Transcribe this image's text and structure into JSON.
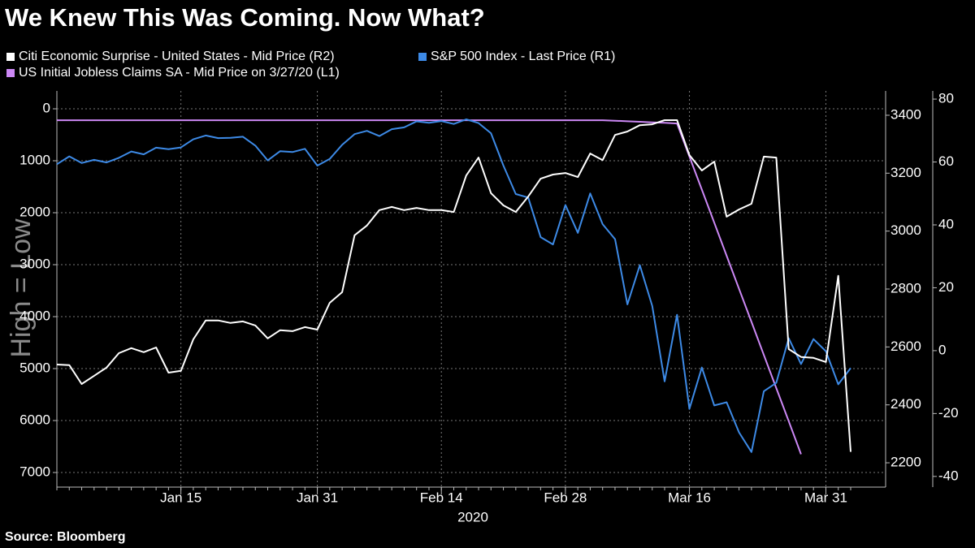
{
  "chart_data": {
    "type": "line",
    "title": "We Knew This Was Coming. Now What?",
    "source": "Source: Bloomberg",
    "xlabel": "2020",
    "ylabel": "High = Low",
    "categories": [
      null,
      null,
      null,
      null,
      null,
      null,
      null,
      null,
      null,
      null,
      "Jan 15",
      null,
      null,
      null,
      null,
      null,
      null,
      null,
      null,
      null,
      null,
      "Jan 31",
      null,
      null,
      null,
      null,
      null,
      null,
      null,
      null,
      null,
      "Feb 14",
      null,
      null,
      null,
      null,
      null,
      null,
      null,
      null,
      null,
      "Feb 28",
      null,
      null,
      null,
      null,
      null,
      null,
      null,
      null,
      null,
      "Mar 16",
      null,
      null,
      null,
      null,
      null,
      null,
      null,
      null,
      null,
      null,
      "Mar 31",
      null,
      null
    ],
    "xticks": [
      10,
      21,
      31,
      41,
      51,
      62
    ],
    "ylim": [
      -344,
      7281
    ],
    "y_inverted": true,
    "yticks": [
      0,
      1000,
      2000,
      3000,
      4000,
      5000,
      6000,
      7000
    ],
    "y2lim": [
      2116,
      3484
    ],
    "y2ticks": [
      2200,
      2400,
      2600,
      2800,
      3000,
      3200,
      3400
    ],
    "y3lim": [
      -43.4,
      82.6
    ],
    "y3ticks": [
      -40,
      -20,
      0,
      20,
      40,
      60,
      80
    ],
    "grid": true,
    "series": [
      {
        "name": "Citi Economic Surprise - United States - Mid Price (R2)",
        "color": "#ffffff",
        "axis": "y3",
        "values": [
          -4.4,
          -4.6,
          -10.6,
          -8,
          -5.4,
          -0.8,
          0.8,
          -0.5,
          1,
          -7,
          -6.4,
          3.6,
          9.6,
          9.6,
          8.8,
          9.3,
          8,
          3.9,
          6.5,
          6.2,
          7.5,
          6.7,
          15.2,
          18.6,
          36.7,
          39.8,
          44.7,
          45.7,
          44.7,
          45.4,
          44.7,
          44.7,
          44.1,
          55.7,
          61.4,
          50.1,
          46.2,
          44.1,
          49,
          54.7,
          56,
          56.5,
          55.2,
          62.7,
          60.6,
          68.6,
          69.7,
          71.7,
          72,
          73.3,
          73.3,
          62.2,
          57.3,
          60.1,
          42.6,
          44.9,
          46.7,
          61.7,
          61.4,
          0.5,
          -2,
          -2.3,
          -3.6,
          23.8,
          -32.2
        ]
      },
      {
        "name": "S&P 500 Index - Last Price (R1)",
        "color": "#3d8ae6",
        "axis": "y2",
        "values": [
          3231,
          3258,
          3235,
          3246,
          3237,
          3253,
          3275,
          3265,
          3288,
          3283,
          3289,
          3317,
          3330,
          3321,
          3322,
          3326,
          3295,
          3244,
          3276,
          3273,
          3284,
          3226,
          3249,
          3298,
          3335,
          3346,
          3328,
          3352,
          3358,
          3379,
          3374,
          3380,
          3370,
          3386,
          3373,
          3338,
          3226,
          3128,
          3116,
          2979,
          2954,
          3090,
          2994,
          3130,
          3024,
          2972,
          2747,
          2882,
          2741,
          2481,
          2711,
          2386,
          2529,
          2398,
          2409,
          2305,
          2237,
          2447,
          2476,
          2630,
          2541,
          2627,
          2585,
          2471,
          2527
        ]
      },
      {
        "name": "US Initial Jobless Claims SA - Mid Price on 3/27/20 (L1)",
        "color": "#cc88f5",
        "axis": "y",
        "values": [
          220,
          220,
          220,
          220,
          220,
          220,
          220,
          220,
          220,
          220,
          220,
          220,
          220,
          220,
          220,
          220,
          220,
          220,
          220,
          220,
          220,
          220,
          220,
          220,
          220,
          220,
          220,
          220,
          220,
          220,
          220,
          220,
          220,
          220,
          220,
          220,
          220,
          220,
          220,
          220,
          220,
          220,
          220,
          220,
          220,
          230,
          240,
          250,
          260,
          270,
          282,
          919,
          1555,
          2192,
          2828,
          3465,
          4102,
          4738,
          5375,
          6011,
          6648,
          null,
          null,
          null,
          null
        ]
      }
    ]
  }
}
